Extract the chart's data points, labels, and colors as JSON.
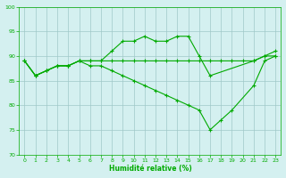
{
  "xlabel": "Humidité relative (%)",
  "ylim": [
    70,
    100
  ],
  "xlim": [
    -0.5,
    23.5
  ],
  "yticks": [
    70,
    75,
    80,
    85,
    90,
    95,
    100
  ],
  "xticks": [
    0,
    1,
    2,
    3,
    4,
    5,
    6,
    7,
    8,
    9,
    10,
    11,
    12,
    13,
    14,
    15,
    16,
    17,
    18,
    19,
    20,
    21,
    22,
    23
  ],
  "background_color": "#d4f0f0",
  "grid_color": "#a0c8c8",
  "line_color": "#00aa00",
  "series1_x": [
    0,
    1,
    2,
    3,
    4,
    5,
    6,
    7,
    8,
    9,
    10,
    11,
    12,
    13,
    14,
    15,
    16,
    17,
    21,
    22,
    23
  ],
  "series1_y": [
    89,
    86,
    87,
    88,
    88,
    89,
    89,
    89,
    91,
    93,
    93,
    94,
    93,
    93,
    94,
    94,
    90,
    86,
    89,
    90,
    91
  ],
  "series2_x": [
    0,
    1,
    2,
    3,
    4,
    5,
    6,
    7,
    8,
    9,
    10,
    11,
    12,
    13,
    14,
    15,
    16,
    17,
    18,
    19,
    20,
    21,
    22,
    23
  ],
  "series2_y": [
    89,
    86,
    87,
    88,
    88,
    89,
    89,
    89,
    89,
    89,
    89,
    89,
    89,
    89,
    89,
    89,
    89,
    89,
    89,
    89,
    89,
    89,
    90,
    90
  ],
  "series3_x": [
    0,
    1,
    2,
    3,
    4,
    5,
    6,
    7,
    8,
    9,
    10,
    11,
    12,
    13,
    14,
    15,
    16,
    17,
    18,
    19,
    21,
    22,
    23
  ],
  "series3_y": [
    89,
    86,
    87,
    88,
    88,
    89,
    88,
    88,
    87,
    86,
    85,
    84,
    83,
    82,
    81,
    80,
    79,
    75,
    77,
    79,
    84,
    89,
    90
  ]
}
